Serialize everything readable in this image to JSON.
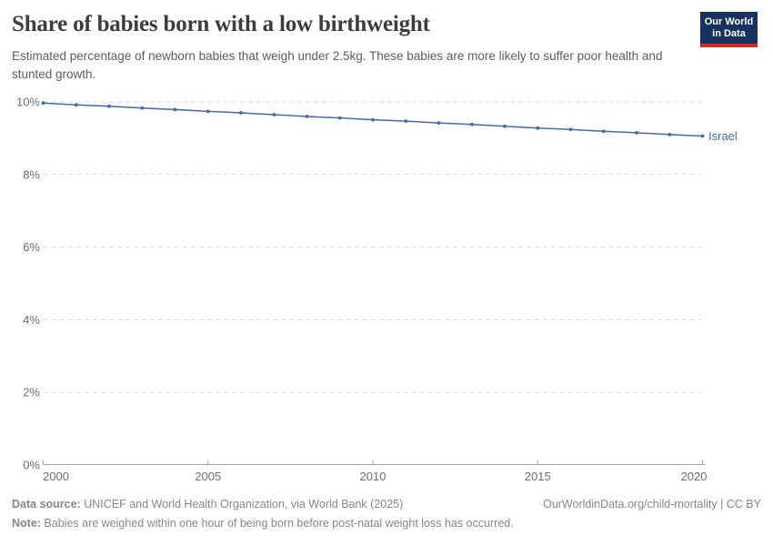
{
  "header": {
    "title": "Share of babies born with a low birthweight",
    "subtitle": "Estimated percentage of newborn babies that weigh under 2.5kg. These babies are more likely to suffer poor health and stunted growth.",
    "logo": {
      "line1": "Our World",
      "line2": "in Data",
      "bg_color": "#16335f",
      "accent_color": "#cd2d23"
    }
  },
  "chart_data": {
    "type": "line",
    "title": "Share of babies born with a low birthweight",
    "subtitle": "Estimated percentage of newborn babies that weigh under 2.5kg. These babies are more likely to suffer poor health and stunted growth.",
    "xlabel": "",
    "ylabel": "",
    "xlim": [
      2000,
      2020
    ],
    "ylim": [
      0,
      10
    ],
    "xticks": [
      2000,
      2005,
      2010,
      2015,
      2020
    ],
    "yticks": [
      0,
      2,
      4,
      6,
      8,
      10
    ],
    "ytick_suffix": "%",
    "grid": "horizontal-dashed",
    "legend_position": "end-of-line-label",
    "x": [
      2000,
      2001,
      2002,
      2003,
      2004,
      2005,
      2006,
      2007,
      2008,
      2009,
      2010,
      2011,
      2012,
      2013,
      2014,
      2015,
      2016,
      2017,
      2018,
      2019,
      2020
    ],
    "series": [
      {
        "name": "Israel",
        "color": "#426aa5",
        "values": [
          9.97,
          9.92,
          9.88,
          9.83,
          9.79,
          9.74,
          9.7,
          9.65,
          9.6,
          9.56,
          9.51,
          9.47,
          9.42,
          9.38,
          9.33,
          9.28,
          9.24,
          9.19,
          9.15,
          9.1,
          9.06
        ]
      }
    ]
  },
  "colors": {
    "gridline": "#d9d9d9",
    "axis": "#a6a6a6",
    "tick_text": "#6d6d6d"
  },
  "footer": {
    "datasource_label": "Data source:",
    "datasource_text": " UNICEF and World Health Organization, via World Bank (2025)",
    "attribution": "OurWorldinData.org/child-mortality | CC BY",
    "note_label": "Note:",
    "note_text": " Babies are weighed within one hour of being born before post-natal weight loss has occurred."
  }
}
